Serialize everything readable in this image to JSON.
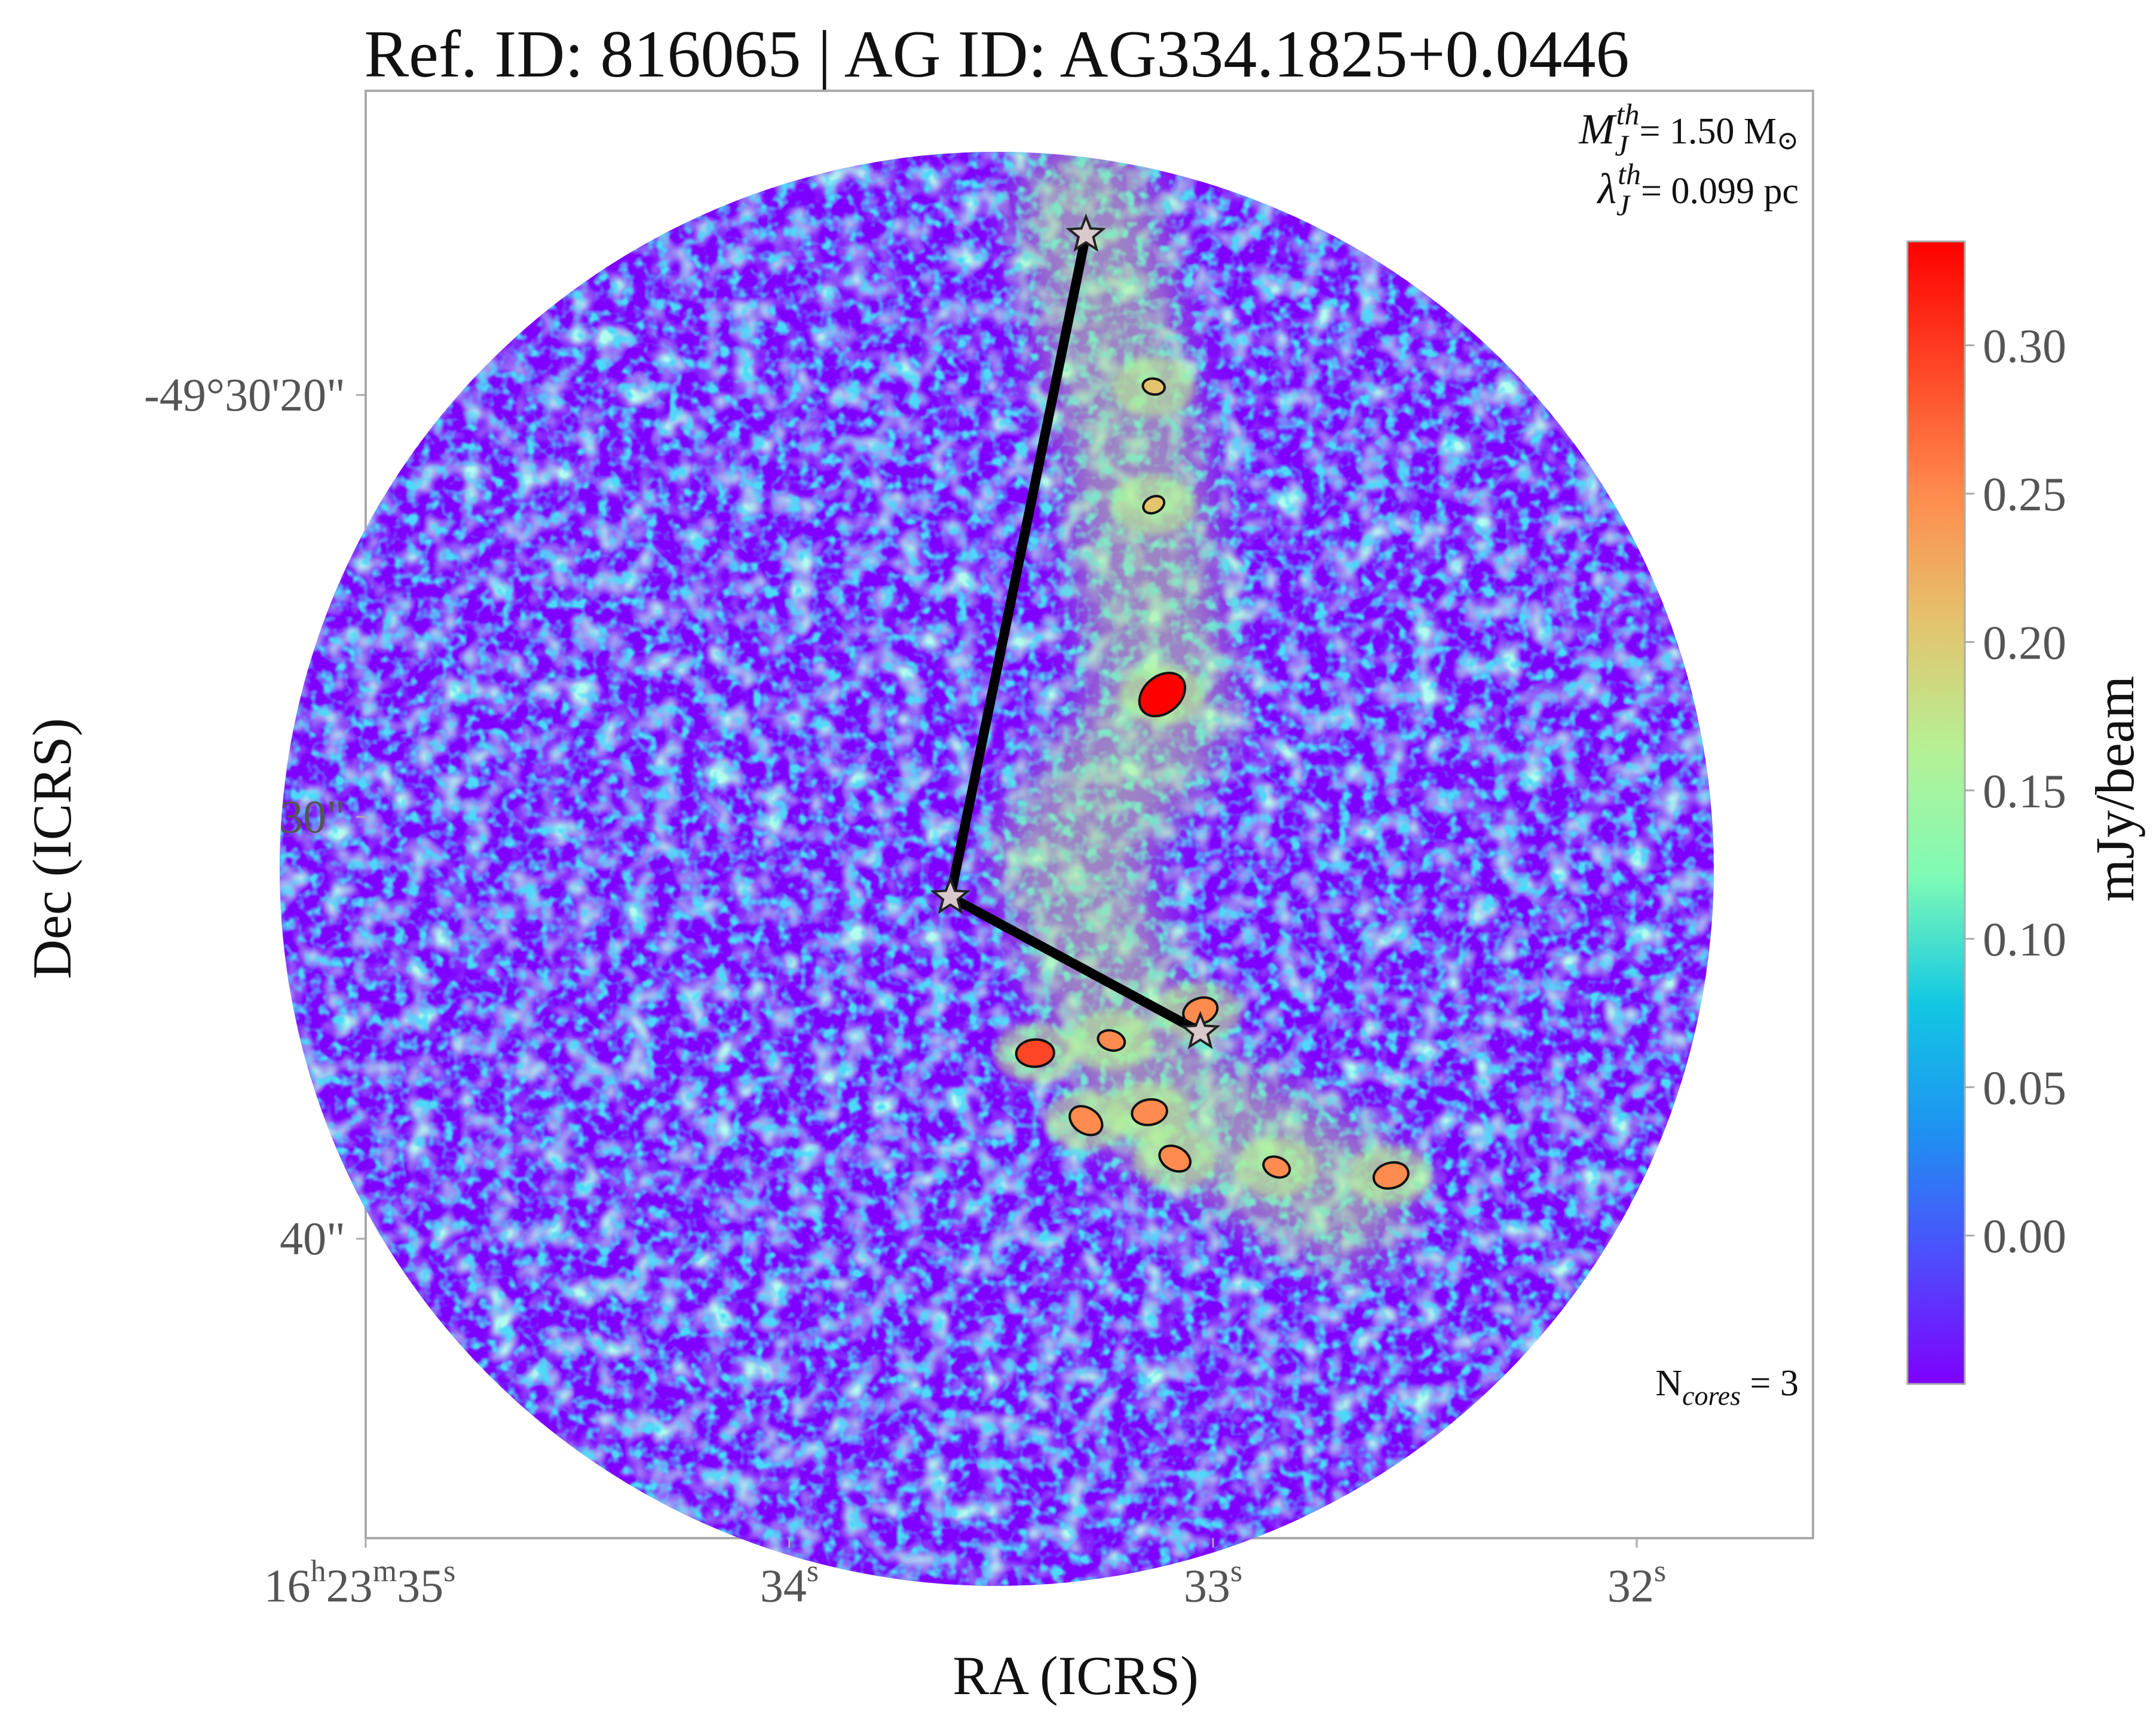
{
  "chart_data": {
    "type": "heatmap",
    "title": "Ref. ID: 816065 | AG ID: AG334.1825+0.0446",
    "xlabel": "RA (ICRS)",
    "ylabel": "Dec (ICRS)",
    "x_ticks": [
      {
        "base": "16",
        "s1": "h",
        "mid": "23",
        "s2": "m",
        "end": "35",
        "s3": "s"
      },
      {
        "base": "34",
        "s3": "s"
      },
      {
        "base": "33",
        "s3": "s"
      },
      {
        "base": "32",
        "s3": "s"
      }
    ],
    "y_ticks": [
      "-49°30'20\"",
      "30\"",
      "40\""
    ],
    "annotations": {
      "mass_sym": "M",
      "mass_sub": "J",
      "mass_sup": "th",
      "mass_value": "= 1.50 M",
      "mass_unit_sym": "⊙",
      "length_sym": "λ",
      "length_sub": "J",
      "length_sup": "th",
      "length_value": "= 0.099 pc",
      "ncores_base": "N",
      "ncores_sub": "cores",
      "ncores_value": " = 3"
    },
    "colorbar": {
      "label": "mJy/beam",
      "vmin": -0.05,
      "vmax": 0.335,
      "ticks": [
        "0.00",
        "0.05",
        "0.10",
        "0.15",
        "0.20",
        "0.25",
        "0.30"
      ],
      "tick_values": [
        0.0,
        0.05,
        0.1,
        0.15,
        0.2,
        0.25,
        0.3
      ],
      "colormap": "rainbow",
      "stops": [
        "#7f00ff",
        "#4e4dfc",
        "#1e92f1",
        "#12c8e3",
        "#7ffab5",
        "#b6f195",
        "#e4c36d",
        "#ff8c4e",
        "#ff4626",
        "#ff0000"
      ]
    },
    "field_of_view": "circular primary beam",
    "cores": [
      {
        "id": 1,
        "ra_s": 33.3,
        "dec_off_arcsec": -16.2
      },
      {
        "id": 2,
        "ra_s": 33.62,
        "dec_off_arcsec": -31.9
      },
      {
        "id": 3,
        "ra_s": 33.03,
        "dec_off_arcsec": -35.1
      }
    ],
    "mst_edges": [
      [
        1,
        2
      ],
      [
        2,
        3
      ]
    ],
    "emission_blobs": [
      {
        "ra_s": 33.12,
        "dec_off_arcsec": -27.1,
        "peak": 0.33
      },
      {
        "ra_s": 33.42,
        "dec_off_arcsec": -35.6,
        "peak": 0.28
      },
      {
        "ra_s": 33.3,
        "dec_off_arcsec": -37.2,
        "peak": 0.27
      },
      {
        "ra_s": 33.15,
        "dec_off_arcsec": -37.0,
        "peak": 0.27
      },
      {
        "ra_s": 33.09,
        "dec_off_arcsec": -38.1,
        "peak": 0.26
      },
      {
        "ra_s": 32.58,
        "dec_off_arcsec": -38.5,
        "peak": 0.27
      },
      {
        "ra_s": 32.85,
        "dec_off_arcsec": -38.3,
        "peak": 0.24
      },
      {
        "ra_s": 33.03,
        "dec_off_arcsec": -34.6,
        "peak": 0.27
      },
      {
        "ra_s": 33.24,
        "dec_off_arcsec": -35.3,
        "peak": 0.24
      },
      {
        "ra_s": 33.14,
        "dec_off_arcsec": -22.6,
        "peak": 0.22
      },
      {
        "ra_s": 33.14,
        "dec_off_arcsec": -19.8,
        "peak": 0.22
      }
    ],
    "filament_nodes": [
      {
        "ra_s": 33.3,
        "dec_off_arcsec": -15.5
      },
      {
        "ra_s": 33.18,
        "dec_off_arcsec": -22.0
      },
      {
        "ra_s": 33.12,
        "dec_off_arcsec": -27.5
      },
      {
        "ra_s": 33.35,
        "dec_off_arcsec": -31.0
      },
      {
        "ra_s": 33.15,
        "dec_off_arcsec": -36.5
      },
      {
        "ra_s": 32.7,
        "dec_off_arcsec": -39.0
      }
    ]
  }
}
